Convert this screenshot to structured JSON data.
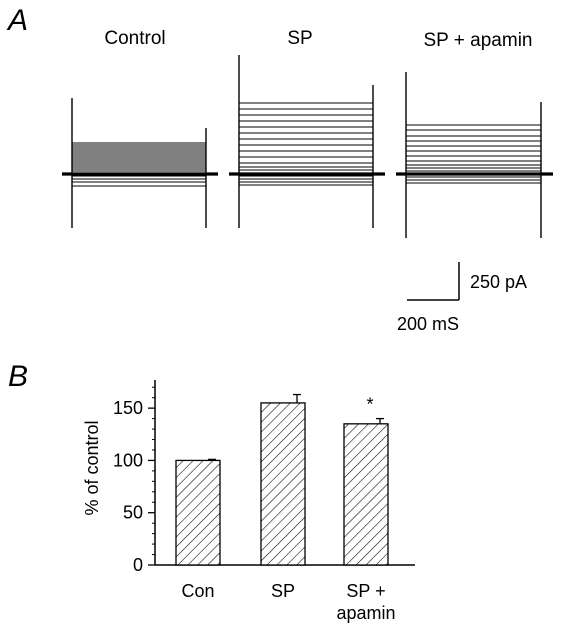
{
  "panel_a": {
    "letter": "A",
    "conditions": [
      {
        "label": "Control",
        "steps": [
          143,
          145,
          147,
          149,
          151,
          153,
          155,
          157,
          159,
          161,
          163,
          165,
          167,
          169,
          171,
          173,
          176,
          179,
          182,
          186
        ]
      },
      {
        "label": "SP",
        "steps": [
          103,
          109,
          115,
          121,
          127,
          133,
          139,
          145,
          151,
          157,
          163,
          167,
          170,
          173,
          176,
          179,
          182,
          185
        ]
      },
      {
        "label": "SP + apamin",
        "steps": [
          125,
          130,
          136,
          141,
          146,
          151,
          156,
          161,
          165,
          168,
          171,
          174,
          177,
          180,
          183
        ]
      }
    ],
    "scale_bar": {
      "current_label": "250 pA",
      "time_label": "200 mS"
    }
  },
  "panel_b": {
    "letter": "B"
  },
  "chart_data": {
    "type": "bar",
    "categories": [
      "Con",
      "SP",
      "SP +\napamin"
    ],
    "values": [
      100,
      155,
      135
    ],
    "errors": [
      1,
      8,
      5
    ],
    "significance": [
      "",
      "",
      "*"
    ],
    "ylabel": "% of control",
    "xlabel": "",
    "ylim": [
      0,
      175
    ],
    "yticks": [
      0,
      50,
      100,
      150
    ],
    "bar_fill": "hatched",
    "grid": false
  }
}
